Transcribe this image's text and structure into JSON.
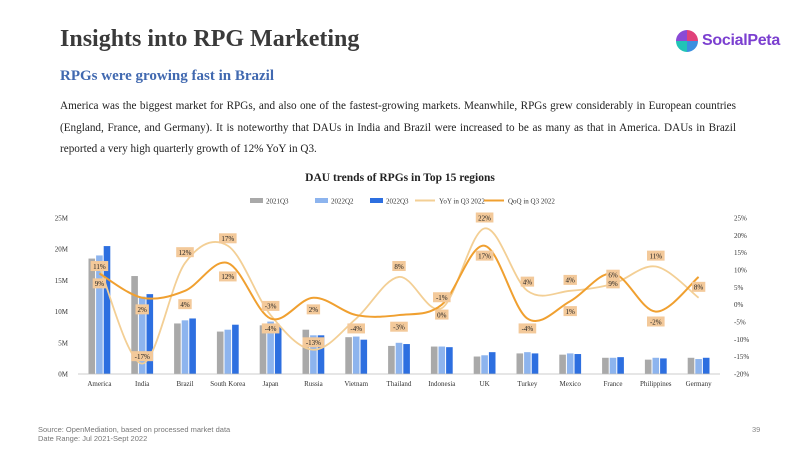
{
  "slide": {
    "title": "Insights into RPG Marketing",
    "logo_text": "SocialPeta",
    "subtitle": "RPGs were growing fast in Brazil",
    "body": "America was the biggest market for RPGs, and also one of the fastest-growing markets. Meanwhile, RPGs grew considerably in European countries (England, France, and Germany). It is noteworthy that DAUs in India and Brazil were increased to be as many as that in America. DAUs in Brazil reported a very high quarterly growth of 12% YoY in Q3.",
    "source": "Source: OpenMediation, based on processed market data",
    "date_range": "Date Range: Jul 2021-Sept 2022",
    "page_number": "39"
  },
  "chart_data": {
    "type": "bar",
    "title": "DAU trends of RPGs in Top 15 regions",
    "categories": [
      "America",
      "India",
      "Brazil",
      "South Korea",
      "Japan",
      "Russia",
      "Vietnam",
      "Thailand",
      "Indonesia",
      "UK",
      "Turkey",
      "Mexico",
      "France",
      "Philippines",
      "Germany"
    ],
    "series": [
      {
        "name": "2021Q3",
        "color": "#a9a9a9",
        "values": [
          18.5,
          15.7,
          8.1,
          6.8,
          7.8,
          7.1,
          5.9,
          4.5,
          4.4,
          2.8,
          3.3,
          3.1,
          2.6,
          2.3,
          2.6
        ]
      },
      {
        "name": "2022Q2",
        "color": "#8db4ee",
        "values": [
          19.0,
          12.4,
          8.6,
          7.1,
          8.4,
          6.2,
          6.0,
          5.0,
          4.4,
          3.0,
          3.5,
          3.3,
          2.6,
          2.6,
          2.4
        ]
      },
      {
        "name": "2022Q3",
        "color": "#2d6fe0",
        "values": [
          20.5,
          12.8,
          8.9,
          7.9,
          7.6,
          6.2,
          5.5,
          4.8,
          4.3,
          3.5,
          3.3,
          3.2,
          2.7,
          2.5,
          2.6
        ]
      }
    ],
    "lines": [
      {
        "name": "YoY in Q3 2022",
        "color": "#f3cf95",
        "axis": "right",
        "values": [
          11,
          -17,
          12,
          17,
          -3,
          -13,
          -4,
          8,
          -1,
          22,
          4,
          4,
          6,
          11,
          2
        ]
      },
      {
        "name": "QoQ in Q3 2022",
        "color": "#f0a030",
        "axis": "right",
        "values": [
          9,
          2,
          4,
          12,
          -4,
          2,
          -3,
          -3,
          0,
          17,
          -4,
          1,
          9,
          -2,
          8
        ]
      }
    ],
    "point_labels": [
      {
        "cat": 0,
        "text": "11%",
        "val": 11
      },
      {
        "cat": 0,
        "text": "9%",
        "val": 6
      },
      {
        "cat": 1,
        "text": "2%",
        "val": -1.5
      },
      {
        "cat": 1,
        "text": "-17%",
        "val": -15
      },
      {
        "cat": 2,
        "text": "12%",
        "val": 15
      },
      {
        "cat": 2,
        "text": "4%",
        "val": 0
      },
      {
        "cat": 3,
        "text": "17%",
        "val": 19
      },
      {
        "cat": 3,
        "text": "12%",
        "val": 8
      },
      {
        "cat": 4,
        "text": "-3%",
        "val": -0.5
      },
      {
        "cat": 4,
        "text": "-4%",
        "val": -7
      },
      {
        "cat": 5,
        "text": "2%",
        "val": -1.5
      },
      {
        "cat": 5,
        "text": "-13%",
        "val": -11
      },
      {
        "cat": 6,
        "text": "-4%",
        "val": -7
      },
      {
        "cat": 7,
        "text": "8%",
        "val": 11
      },
      {
        "cat": 7,
        "text": "-3%",
        "val": -6.5
      },
      {
        "cat": 8,
        "text": "-1%",
        "val": 2
      },
      {
        "cat": 8,
        "text": "0%",
        "val": -3
      },
      {
        "cat": 9,
        "text": "22%",
        "val": 25
      },
      {
        "cat": 9,
        "text": "17%",
        "val": 14
      },
      {
        "cat": 10,
        "text": "4%",
        "val": 6.5
      },
      {
        "cat": 10,
        "text": "-4%",
        "val": -7
      },
      {
        "cat": 11,
        "text": "4%",
        "val": 7
      },
      {
        "cat": 11,
        "text": "1%",
        "val": -2
      },
      {
        "cat": 12,
        "text": "6%",
        "val": 8.5
      },
      {
        "cat": 12,
        "text": "9%",
        "val": 6
      },
      {
        "cat": 13,
        "text": "11%",
        "val": 14
      },
      {
        "cat": 13,
        "text": "-2%",
        "val": -5
      },
      {
        "cat": 14,
        "text": "8%",
        "val": 5
      }
    ],
    "y_left": {
      "min": 0,
      "max": 25,
      "step": 5,
      "tick_labels": [
        "0M",
        "5M",
        "10M",
        "15M",
        "20M",
        "25M"
      ]
    },
    "y_right": {
      "min": -20,
      "max": 25,
      "step": 5,
      "tick_labels": [
        "-20%",
        "-15%",
        "-10%",
        "-5%",
        "0%",
        "5%",
        "10%",
        "15%",
        "20%",
        "25%"
      ]
    },
    "legend_position": "top",
    "grid": false
  }
}
